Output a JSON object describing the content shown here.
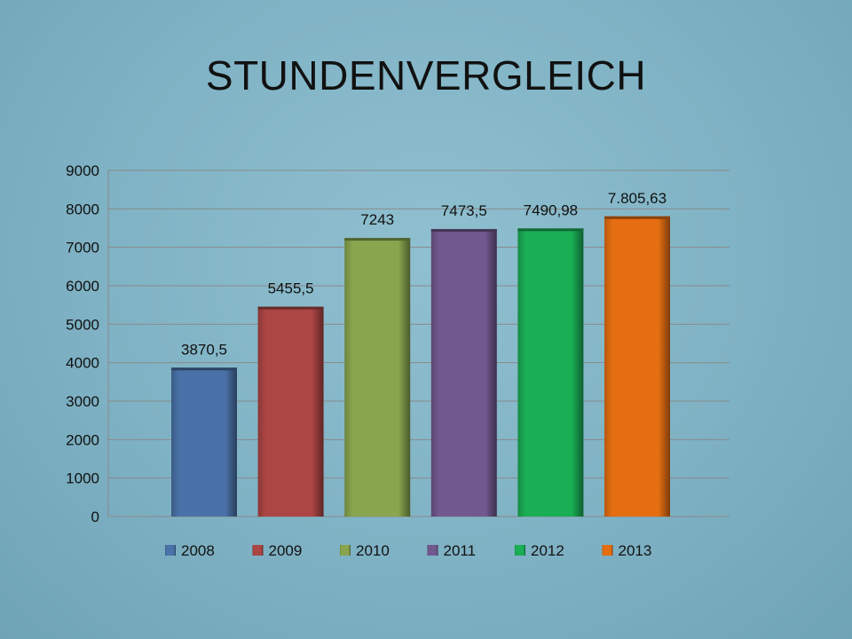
{
  "slide": {
    "title": "STUNDENVERGLEICH"
  },
  "chart_data": {
    "type": "bar",
    "categories": [
      "2008",
      "2009",
      "2010",
      "2011",
      "2012",
      "2013"
    ],
    "values": [
      3870.5,
      5455.5,
      7243,
      7473.5,
      7490.98,
      7805.63
    ],
    "data_labels": [
      "3870,5",
      "5455,5",
      "7243",
      "7473,5",
      "7490,98",
      "7.805,63"
    ],
    "colors": [
      "#4a72a8",
      "#ac4645",
      "#89a64e",
      "#715990",
      "#1aae55",
      "#e56e12"
    ],
    "ylim": [
      0,
      9000
    ],
    "yticks": [
      "0",
      "1000",
      "2000",
      "3000",
      "4000",
      "5000",
      "6000",
      "7000",
      "8000",
      "9000"
    ],
    "grid": true,
    "legend": "bottom",
    "title": "",
    "xlabel": "",
    "ylabel": ""
  }
}
